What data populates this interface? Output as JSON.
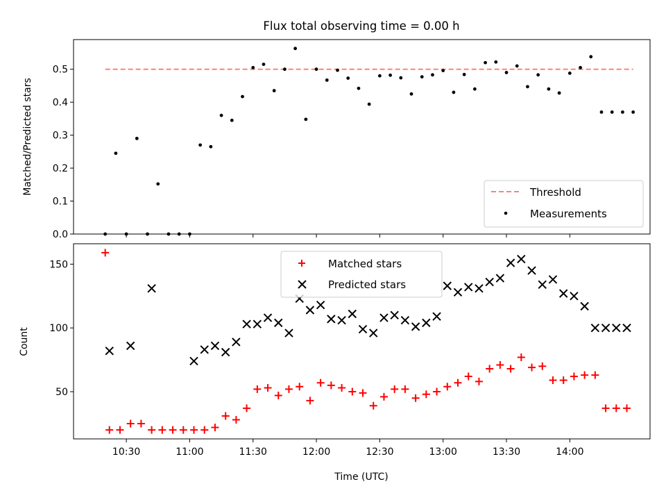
{
  "title": "Flux total observing time = 0.00 h",
  "colors": {
    "threshold_line": "#ff8080",
    "measurement_points": "#000000",
    "matched_markers": "#ff0000",
    "predicted_markers": "#000000",
    "axes": "#000000",
    "background": "#ffffff"
  },
  "chart_data": [
    {
      "type": "scatter",
      "title": "Flux total observing time = 0.00 h",
      "xlabel": "",
      "ylabel": "Matched/Predicted stars",
      "xlim": [
        "10:05",
        "14:38"
      ],
      "ylim": [
        0,
        0.59
      ],
      "yticks": [
        "0.0",
        "0.1",
        "0.2",
        "0.3",
        "0.4",
        "0.5"
      ],
      "grid": false,
      "legend": {
        "placement": "lower right",
        "entries": [
          "Threshold",
          "Measurements"
        ]
      },
      "threshold": {
        "name": "Threshold",
        "value": 0.5,
        "x_start": "10:20",
        "x_end": "14:30",
        "style": "dashed"
      },
      "series": [
        {
          "name": "Measurements",
          "marker": "dot",
          "x": [
            "10:20",
            "10:25",
            "10:30",
            "10:35",
            "10:40",
            "10:45",
            "10:50",
            "10:55",
            "11:00",
            "11:05",
            "11:10",
            "11:15",
            "11:20",
            "11:25",
            "11:30",
            "11:35",
            "11:40",
            "11:45",
            "11:50",
            "11:55",
            "12:00",
            "12:05",
            "12:10",
            "12:15",
            "12:20",
            "12:25",
            "12:30",
            "12:35",
            "12:40",
            "12:45",
            "12:50",
            "12:55",
            "13:00",
            "13:05",
            "13:10",
            "13:15",
            "13:20",
            "13:25",
            "13:30",
            "13:35",
            "13:40",
            "13:45",
            "13:50",
            "13:55",
            "14:00",
            "14:05",
            "14:10",
            "14:15",
            "14:20",
            "14:25",
            "14:30"
          ],
          "y": [
            0.0,
            0.245,
            0.0,
            0.29,
            0.0,
            0.152,
            0.0,
            0.0,
            0.0,
            0.27,
            0.265,
            0.36,
            0.345,
            0.417,
            0.505,
            0.515,
            0.435,
            0.5,
            0.563,
            0.348,
            0.5,
            0.467,
            0.497,
            0.473,
            0.442,
            0.394,
            0.48,
            0.482,
            0.474,
            0.425,
            0.477,
            0.483,
            0.496,
            0.43,
            0.484,
            0.44,
            0.52,
            0.522,
            0.49,
            0.51,
            0.447,
            0.483,
            0.44,
            0.428,
            0.488,
            0.505,
            0.538,
            0.37,
            0.37,
            0.37,
            0.37
          ]
        }
      ]
    },
    {
      "type": "scatter",
      "title": "",
      "xlabel": "Time (UTC)",
      "ylabel": "Count",
      "xlim": [
        "10:05",
        "14:38"
      ],
      "ylim": [
        13,
        166
      ],
      "yticks": [
        "50",
        "100",
        "150"
      ],
      "xticks": [
        "10:30",
        "11:00",
        "11:30",
        "12:00",
        "12:30",
        "13:00",
        "13:30",
        "14:00"
      ],
      "grid": false,
      "legend": {
        "placement": "upper center",
        "entries": [
          "Matched stars",
          "Predicted stars"
        ]
      },
      "series": [
        {
          "name": "Matched stars",
          "marker": "plus",
          "x": [
            "10:20",
            "10:22",
            "10:27",
            "10:32",
            "10:37",
            "10:42",
            "10:47",
            "10:52",
            "10:57",
            "11:02",
            "11:07",
            "11:12",
            "11:17",
            "11:22",
            "11:27",
            "11:32",
            "11:37",
            "11:42",
            "11:47",
            "11:52",
            "11:57",
            "12:02",
            "12:07",
            "12:12",
            "12:17",
            "12:22",
            "12:27",
            "12:32",
            "12:37",
            "12:42",
            "12:47",
            "12:52",
            "12:57",
            "13:02",
            "13:07",
            "13:12",
            "13:17",
            "13:22",
            "13:27",
            "13:32",
            "13:37",
            "13:42",
            "13:47",
            "13:52",
            "13:57",
            "14:02",
            "14:07",
            "14:12",
            "14:17",
            "14:22",
            "14:27"
          ],
          "y": [
            159,
            20,
            20,
            25,
            25,
            20,
            20,
            20,
            20,
            20,
            20,
            22,
            31,
            28,
            37,
            52,
            53,
            47,
            52,
            54,
            43,
            57,
            55,
            53,
            50,
            49,
            39,
            46,
            52,
            52,
            45,
            48,
            50,
            54,
            57,
            62,
            58,
            68,
            71,
            68,
            77,
            69,
            70,
            59,
            59,
            62,
            63,
            63,
            37,
            37,
            37
          ]
        },
        {
          "name": "Predicted stars",
          "marker": "x",
          "x": [
            "10:22",
            "10:32",
            "10:42",
            "11:02",
            "11:07",
            "11:12",
            "11:17",
            "11:22",
            "11:27",
            "11:32",
            "11:37",
            "11:42",
            "11:47",
            "11:52",
            "11:57",
            "12:02",
            "12:07",
            "12:12",
            "12:17",
            "12:22",
            "12:27",
            "12:32",
            "12:37",
            "12:42",
            "12:47",
            "12:52",
            "12:57",
            "13:02",
            "13:07",
            "13:12",
            "13:17",
            "13:22",
            "13:27",
            "13:32",
            "13:37",
            "13:42",
            "13:47",
            "13:52",
            "13:57",
            "14:02",
            "14:07",
            "14:12",
            "14:17",
            "14:22",
            "14:27"
          ],
          "y": [
            82,
            86,
            131,
            74,
            83,
            86,
            81,
            89,
            103,
            103,
            108,
            104,
            96,
            123,
            114,
            118,
            107,
            106,
            111,
            99,
            96,
            108,
            110,
            106,
            101,
            104,
            109,
            133,
            128,
            132,
            131,
            136,
            139,
            151,
            154,
            145,
            134,
            138,
            127,
            125,
            117,
            100,
            100,
            100,
            100
          ]
        }
      ]
    }
  ]
}
